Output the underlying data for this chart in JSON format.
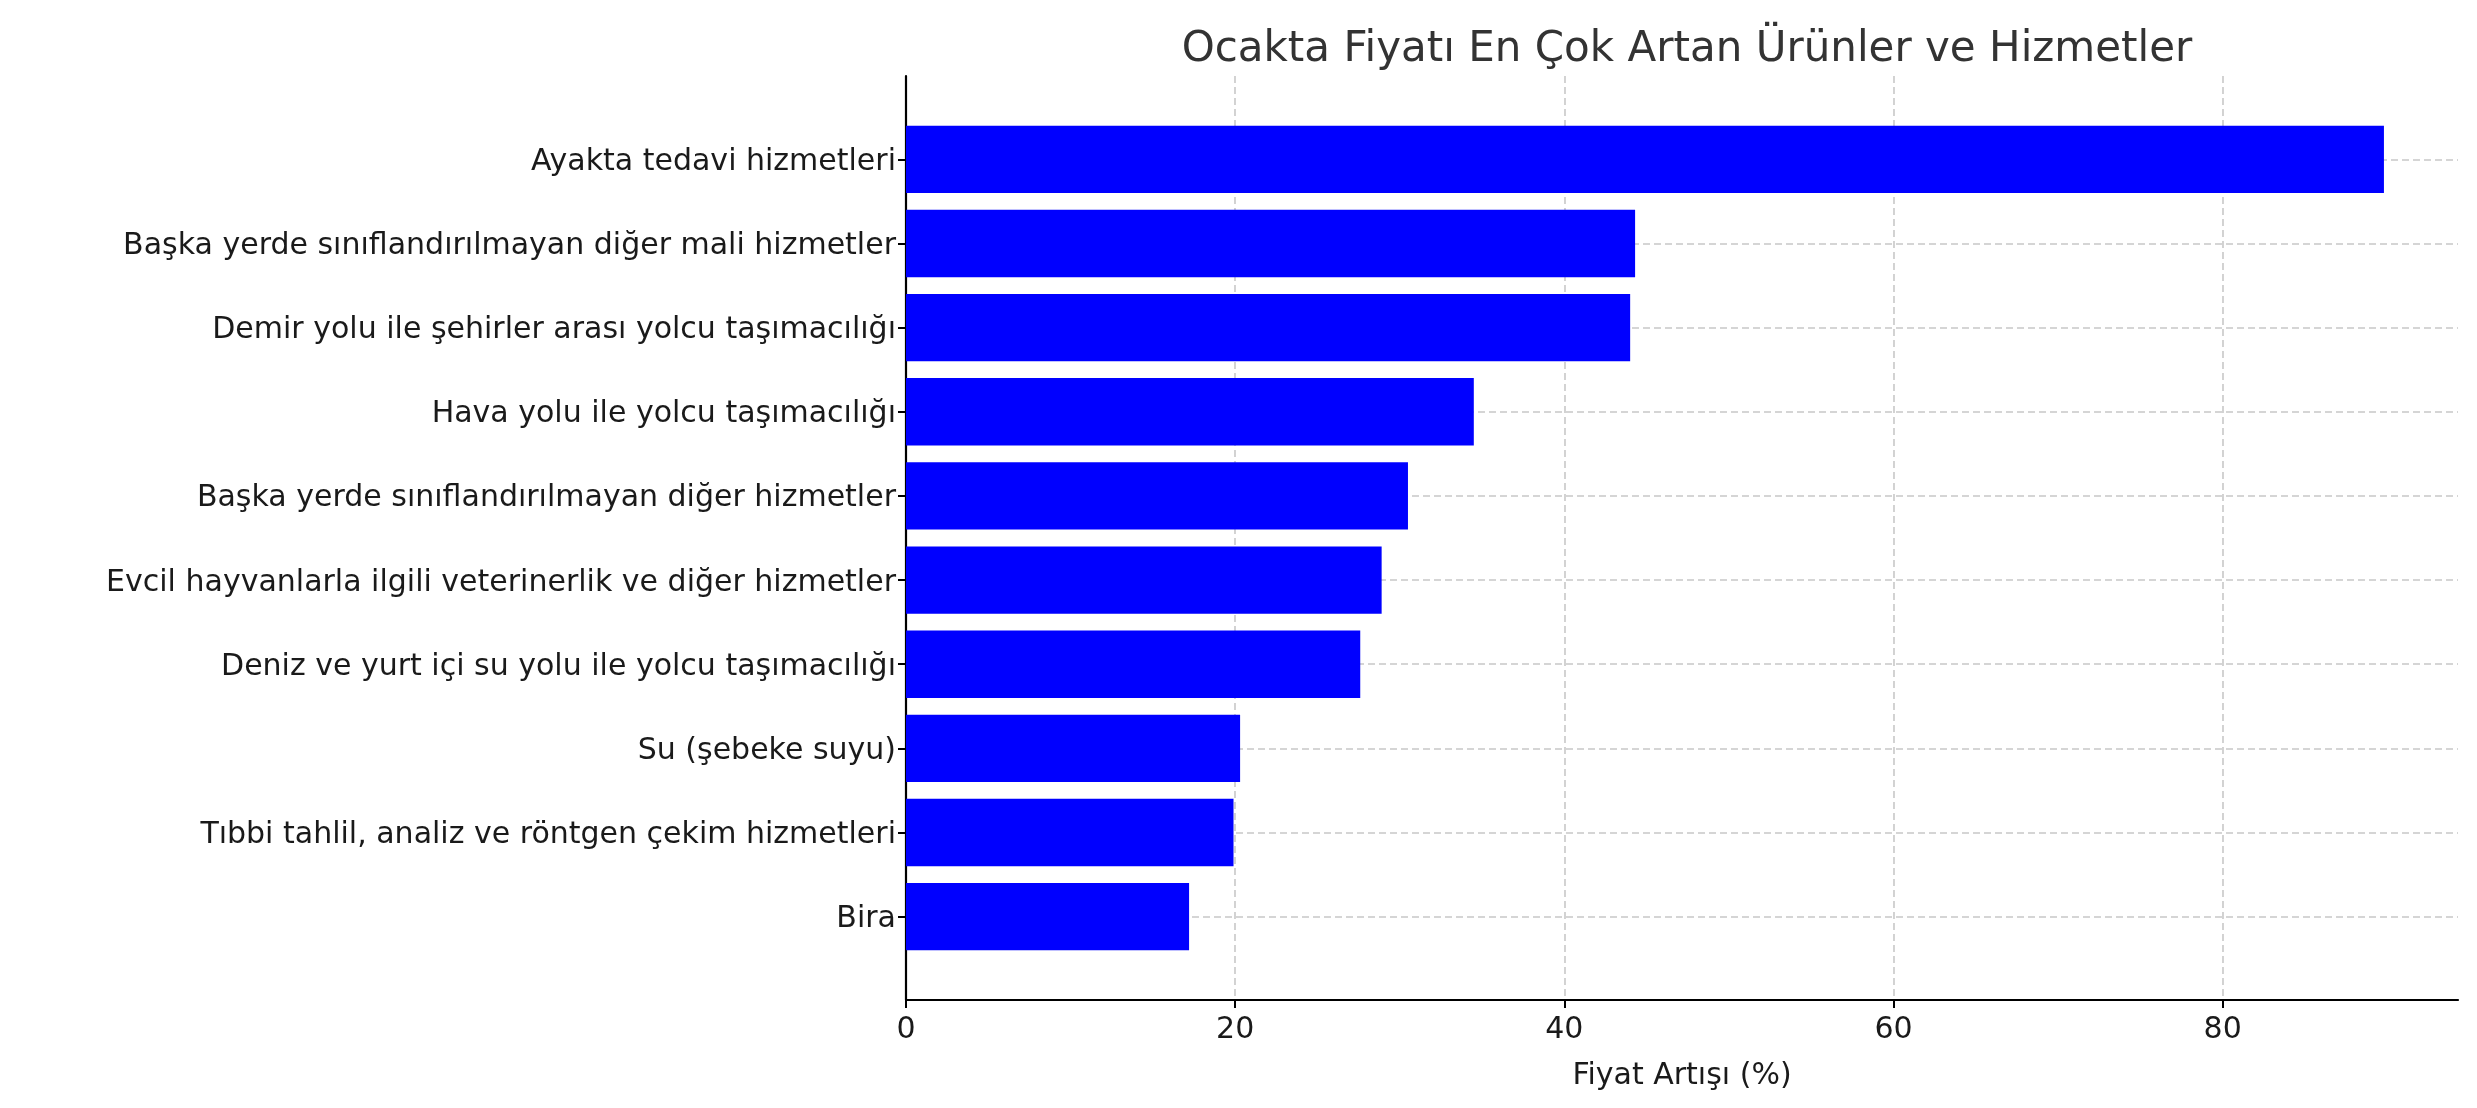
{
  "chart_data": {
    "type": "bar",
    "orientation": "horizontal",
    "title": "Ocakta Fiyatı En Çok Artan Ürünler ve Hizmetler",
    "xlabel": "Fiyat Artışı (%)",
    "categories": [
      "Ayakta tedavi hizmetleri",
      "Başka yerde sınıflandırılmayan diğer mali hizmetler",
      "Demir yolu ile şehirler arası yolcu taşımacılığı",
      "Hava yolu ile yolcu taşımacılığı",
      "Başka yerde sınıflandırılmayan diğer hizmetler",
      "Evcil hayvanlarla ilgili veterinerlik ve diğer hizmetler",
      "Deniz ve yurt içi su yolu ile yolcu taşımacılığı",
      "Su (şebeke suyu)",
      "Tıbbi tahlil, analiz ve röntgen çekim hizmetleri",
      "Bira"
    ],
    "values": [
      89.8,
      44.3,
      44.0,
      34.5,
      30.5,
      28.9,
      27.6,
      20.3,
      19.9,
      17.2
    ],
    "color": "#0000ff",
    "xlim": [
      0,
      94.3
    ],
    "xticks": [
      0,
      20,
      40,
      60,
      80
    ],
    "grid": true
  }
}
